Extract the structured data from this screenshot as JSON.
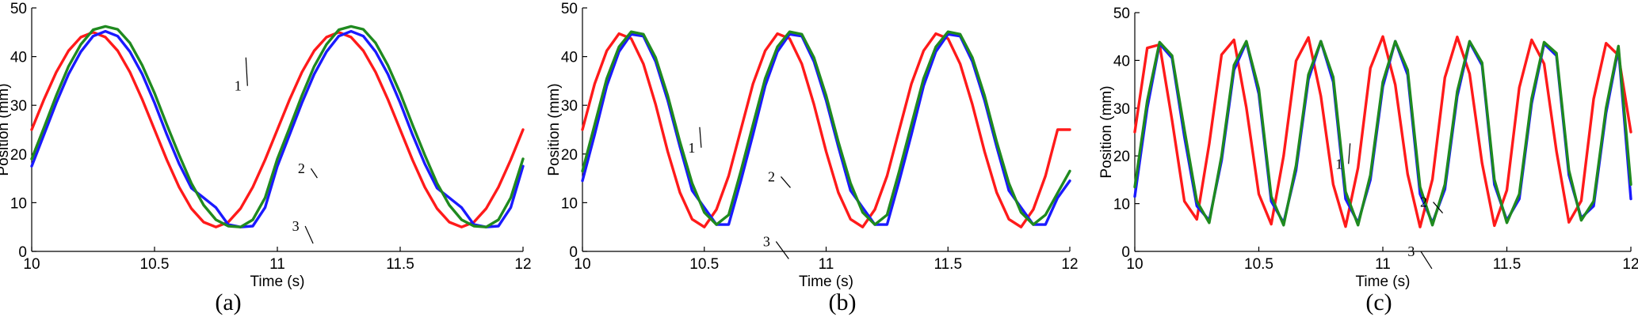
{
  "chart_data": [
    {
      "type": "line",
      "panel_label": "(a)",
      "xlabel": "Time (s)",
      "ylabel": "Position (mm)",
      "xlim": [
        10,
        12
      ],
      "ylim": [
        0,
        50
      ],
      "xticks": [
        10,
        10.5,
        11,
        11.5,
        12
      ],
      "xtick_labels": [
        "10",
        "10.5",
        "11",
        "11.5",
        "12"
      ],
      "yticks": [
        0,
        10,
        20,
        30,
        40,
        50
      ],
      "ytick_labels": [
        "0",
        "10",
        "20",
        "30",
        "40",
        "50"
      ],
      "grid": false,
      "series": [
        {
          "label": "1",
          "color": "#ff1a1a",
          "x": [
            10,
            10.05,
            10.1,
            10.15,
            10.2,
            10.25,
            10.3,
            10.35,
            10.4,
            10.45,
            10.5,
            10.55,
            10.6,
            10.65,
            10.7,
            10.75,
            10.8,
            10.85,
            10.9,
            10.95,
            11,
            11.05,
            11.1,
            11.15,
            11.2,
            11.25,
            11.3,
            11.35,
            11.4,
            11.45,
            11.5,
            11.55,
            11.6,
            11.65,
            11.7,
            11.75,
            11.8,
            11.85,
            11.9,
            11.95,
            12
          ],
          "y": [
            25,
            31.2,
            36.8,
            41.2,
            44,
            45,
            44,
            41.2,
            36.8,
            31.2,
            25,
            18.8,
            13.2,
            8.8,
            6,
            5,
            6,
            8.8,
            13.2,
            18.8,
            25,
            31.2,
            36.8,
            41.2,
            44,
            45,
            44,
            41.2,
            36.8,
            31.2,
            25,
            18.8,
            13.2,
            8.8,
            6,
            5,
            6,
            8.8,
            13.2,
            18.8,
            25
          ]
        },
        {
          "label": "3",
          "color": "#1a1aff",
          "x": [
            10,
            10.05,
            10.1,
            10.15,
            10.2,
            10.25,
            10.3,
            10.35,
            10.4,
            10.45,
            10.5,
            10.55,
            10.6,
            10.65,
            10.7,
            10.75,
            10.8,
            10.85,
            10.9,
            10.95,
            11,
            11.05,
            11.1,
            11.15,
            11.2,
            11.25,
            11.3,
            11.35,
            11.4,
            11.45,
            11.5,
            11.55,
            11.6,
            11.65,
            11.7,
            11.75,
            11.8,
            11.85,
            11.9,
            11.95,
            12
          ],
          "y": [
            17.5,
            24,
            30.5,
            36.4,
            41,
            44.2,
            45.2,
            44.2,
            41,
            36.4,
            30.5,
            24,
            18,
            13,
            11,
            9,
            5.5,
            5,
            5.2,
            9,
            17.5,
            24,
            30.5,
            36.4,
            41,
            44.2,
            45.2,
            44.2,
            41,
            36.4,
            30.5,
            24,
            18,
            13,
            11,
            9,
            5.5,
            5,
            5.2,
            9,
            17.5
          ]
        },
        {
          "label": "2",
          "color": "#1f8a1f",
          "x": [
            10,
            10.05,
            10.1,
            10.15,
            10.2,
            10.25,
            10.3,
            10.35,
            10.4,
            10.45,
            10.5,
            10.55,
            10.6,
            10.65,
            10.7,
            10.75,
            10.8,
            10.85,
            10.9,
            10.95,
            11,
            11.05,
            11.1,
            11.15,
            11.2,
            11.25,
            11.3,
            11.35,
            11.4,
            11.45,
            11.5,
            11.55,
            11.6,
            11.65,
            11.7,
            11.75,
            11.8,
            11.85,
            11.9,
            11.95,
            12
          ],
          "y": [
            19,
            25.4,
            32,
            38,
            42.5,
            45.5,
            46.2,
            45.6,
            42.8,
            38.2,
            32.5,
            26,
            19.8,
            14,
            9.5,
            6.5,
            5.2,
            5,
            6.5,
            11,
            19,
            25.4,
            32,
            38,
            42.5,
            45.5,
            46.2,
            45.6,
            42.8,
            38.2,
            32.5,
            26,
            19.8,
            14,
            9.5,
            6.5,
            5.2,
            5,
            6.5,
            11,
            19
          ]
        }
      ],
      "annotations": [
        {
          "text": "1",
          "x": 10.93,
          "y": 33
        },
        {
          "text": "2",
          "x": 11.04,
          "y": 18
        },
        {
          "text": "3",
          "x": 11.01,
          "y": 6.5
        }
      ]
    },
    {
      "type": "line",
      "panel_label": "(b)",
      "xlabel": "Time (s)",
      "ylabel": "Position (mm)",
      "xlim": [
        10,
        12
      ],
      "ylim": [
        0,
        50
      ],
      "xticks": [
        10,
        10.5,
        11,
        11.5,
        12
      ],
      "xtick_labels": [
        "10",
        "10.5",
        "11",
        "11.5",
        "12"
      ],
      "yticks": [
        0,
        10,
        20,
        30,
        40,
        50
      ],
      "ytick_labels": [
        "0",
        "10",
        "20",
        "30",
        "40",
        "50"
      ],
      "grid": false,
      "series": [
        {
          "label": "1",
          "color": "#ff1a1a",
          "x": [
            10,
            10.05,
            10.1,
            10.15,
            10.2,
            10.25,
            10.3,
            10.35,
            10.4,
            10.45,
            10.5,
            10.55,
            10.6,
            10.65,
            10.7,
            10.75,
            10.8,
            10.85,
            10.9,
            10.95,
            11,
            11.05,
            11.1,
            11.15,
            11.2,
            11.25,
            11.3,
            11.35,
            11.4,
            11.45,
            11.5,
            11.55,
            11.6,
            11.65,
            11.7,
            11.75,
            11.8,
            11.85,
            11.9,
            11.95,
            12
          ],
          "y": [
            25,
            34.4,
            41.2,
            44.7,
            43.7,
            38.5,
            30.2,
            20.5,
            12.1,
            6.6,
            5,
            8.6,
            15.5,
            25,
            34.4,
            41.2,
            44.7,
            43.7,
            38.5,
            30.2,
            20.5,
            12.1,
            6.6,
            5,
            8.6,
            15.5,
            25,
            34.4,
            41.2,
            44.7,
            43.7,
            38.5,
            30.2,
            20.5,
            12.1,
            6.6,
            5,
            8.6,
            15.5,
            25,
            25
          ]
        },
        {
          "label": "3",
          "color": "#1a1aff",
          "x": [
            10,
            10.05,
            10.1,
            10.15,
            10.2,
            10.25,
            10.3,
            10.35,
            10.4,
            10.45,
            10.5,
            10.55,
            10.6,
            10.65,
            10.7,
            10.75,
            10.8,
            10.85,
            10.9,
            10.95,
            11,
            11.05,
            11.1,
            11.15,
            11.2,
            11.25,
            11.3,
            11.35,
            11.4,
            11.45,
            11.5,
            11.55,
            11.6,
            11.65,
            11.7,
            11.75,
            11.8,
            11.85,
            11.9,
            11.95,
            12
          ],
          "y": [
            14.5,
            24,
            34,
            41,
            44.6,
            44.2,
            39,
            31,
            21.5,
            12.5,
            9,
            5.5,
            5.5,
            14.5,
            24,
            34,
            41,
            44.6,
            44.2,
            39,
            31,
            21.5,
            12.5,
            9,
            5.5,
            5.5,
            14.5,
            24,
            34,
            41,
            44.6,
            44.2,
            39,
            31,
            21.5,
            12.5,
            9,
            5.5,
            5.5,
            11,
            14.5
          ]
        },
        {
          "label": "2",
          "color": "#1f8a1f",
          "x": [
            10,
            10.05,
            10.1,
            10.15,
            10.2,
            10.25,
            10.3,
            10.35,
            10.4,
            10.45,
            10.5,
            10.55,
            10.6,
            10.65,
            10.7,
            10.75,
            10.8,
            10.85,
            10.9,
            10.95,
            11,
            11.05,
            11.1,
            11.15,
            11.2,
            11.25,
            11.3,
            11.35,
            11.4,
            11.45,
            11.5,
            11.55,
            11.6,
            11.65,
            11.7,
            11.75,
            11.8,
            11.85,
            11.9,
            11.95,
            12
          ],
          "y": [
            16.5,
            26,
            35.5,
            42,
            45.1,
            44.6,
            39.8,
            32,
            22.5,
            14,
            8,
            5.5,
            7.5,
            16.5,
            26,
            35.5,
            42,
            45.1,
            44.6,
            39.8,
            32,
            22.5,
            14,
            8,
            5.5,
            7.5,
            16.5,
            26,
            35.5,
            42,
            45.1,
            44.6,
            39.8,
            32,
            22.5,
            14,
            8,
            5.5,
            7.5,
            12,
            16.5
          ]
        }
      ],
      "annotations": [
        {
          "text": "1",
          "x": 10.52,
          "y": 20
        },
        {
          "text": "2",
          "x": 10.73,
          "y": 16
        },
        {
          "text": "3",
          "x": 10.71,
          "y": 3
        }
      ]
    },
    {
      "type": "line",
      "panel_label": "(c)",
      "xlabel": "Time (s)",
      "ylabel": "Position (mm)",
      "xlim": [
        10,
        12
      ],
      "ylim": [
        0,
        50
      ],
      "xticks": [
        10,
        10.5,
        11,
        11.5,
        12
      ],
      "xtick_labels": [
        "10",
        "10.5",
        "11",
        "11.5",
        "12"
      ],
      "yticks": [
        0,
        10,
        20,
        30,
        40,
        50
      ],
      "ytick_labels": [
        "0",
        "10",
        "20",
        "30",
        "40",
        "50"
      ],
      "grid": false,
      "series": [
        {
          "label": "1",
          "color": "#ff1a1a",
          "x": [
            10,
            10.05,
            10.1,
            10.15,
            10.2,
            10.25,
            10.3,
            10.35,
            10.4,
            10.45,
            10.5,
            10.55,
            10.6,
            10.65,
            10.7,
            10.75,
            10.8,
            10.85,
            10.9,
            10.95,
            11,
            11.05,
            11.1,
            11.15,
            11.2,
            11.25,
            11.3,
            11.35,
            11.4,
            11.45,
            11.5,
            11.55,
            11.6,
            11.65,
            11.7,
            11.75,
            11.8,
            11.85,
            11.9,
            11.95,
            12
          ],
          "y": [
            25,
            42.6,
            43.3,
            27.5,
            10.5,
            6.7,
            22.5,
            41.2,
            44.3,
            30.1,
            12,
            5.7,
            20,
            39.9,
            44.8,
            32.5,
            14,
            5.2,
            17.5,
            38.4,
            45,
            34.9,
            16.2,
            5.1,
            15.1,
            36.4,
            44.9,
            37.2,
            18.5,
            5.4,
            12.8,
            34.3,
            44.3,
            39.3,
            21,
            6.1,
            10.6,
            31.9,
            43.6,
            41.1,
            25
          ]
        },
        {
          "label": "3",
          "color": "#1a1aff",
          "x": [
            10,
            10.05,
            10.1,
            10.15,
            10.2,
            10.25,
            10.3,
            10.35,
            10.4,
            10.45,
            10.5,
            10.55,
            10.6,
            10.65,
            10.7,
            10.75,
            10.8,
            10.85,
            10.9,
            10.95,
            11,
            11.05,
            11.1,
            11.15,
            11.2,
            11.25,
            11.3,
            11.35,
            11.4,
            11.45,
            11.5,
            11.55,
            11.6,
            11.65,
            11.7,
            11.75,
            11.8,
            11.85,
            11.9,
            11.95,
            12
          ],
          "y": [
            11.5,
            30,
            43.5,
            40.5,
            24,
            9.5,
            6.5,
            19,
            38,
            43.8,
            33,
            10.5,
            6,
            17,
            36,
            44,
            35.5,
            11,
            6,
            15,
            34.5,
            44,
            37,
            12,
            6,
            13,
            32.5,
            43.8,
            39,
            14,
            6.5,
            11,
            31,
            43.5,
            41,
            16,
            7,
            9.5,
            29,
            42.5,
            11
          ]
        },
        {
          "label": "2",
          "color": "#1f8a1f",
          "x": [
            10,
            10.05,
            10.1,
            10.15,
            10.2,
            10.25,
            10.3,
            10.35,
            10.4,
            10.45,
            10.5,
            10.55,
            10.6,
            10.65,
            10.7,
            10.75,
            10.8,
            10.85,
            10.9,
            10.95,
            11,
            11.05,
            11.1,
            11.15,
            11.2,
            11.25,
            11.3,
            11.35,
            11.4,
            11.45,
            11.5,
            11.55,
            11.6,
            11.65,
            11.7,
            11.75,
            11.8,
            11.85,
            11.9,
            11.95,
            12
          ],
          "y": [
            13.5,
            31.5,
            43.8,
            41,
            25.5,
            10.5,
            6,
            20,
            39,
            44,
            34,
            11.5,
            5.5,
            18,
            37,
            44,
            36.5,
            12.5,
            5.5,
            16,
            35.5,
            44,
            38,
            13.5,
            5.5,
            14,
            33.5,
            44,
            39.5,
            15,
            6,
            12,
            32,
            43.8,
            41.5,
            17,
            6.5,
            10.5,
            30,
            43,
            14
          ]
        }
      ],
      "annotations": [
        {
          "text": "1",
          "x": 10.9,
          "y": 17
        },
        {
          "text": "2",
          "x": 11.12,
          "y": 11
        },
        {
          "text": "3",
          "x": 11.07,
          "y": 1
        }
      ]
    }
  ]
}
